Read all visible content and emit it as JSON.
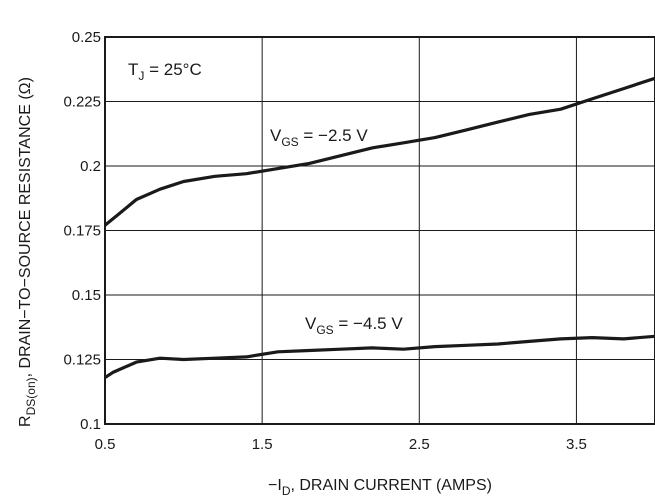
{
  "chart_data": {
    "type": "line",
    "xlabel": {
      "prefix": "−I",
      "sub": "D",
      "rest": ", DRAIN CURRENT (AMPS)"
    },
    "ylabel": {
      "main": "R",
      "sub": "DS(on)",
      "rest": ", DRAIN−TO−SOURCE RESISTANCE (Ω)"
    },
    "xlim": [
      0.5,
      4.0
    ],
    "ylim": [
      0.1,
      0.25
    ],
    "xticks": [
      "0.5",
      "1.5",
      "2.5",
      "3.5"
    ],
    "yticks": [
      "0.1",
      "0.125",
      "0.15",
      "0.175",
      "0.2",
      "0.225",
      "0.25"
    ],
    "grid": true,
    "annotation": {
      "main": "T",
      "sub": "J",
      "rest": " = 25°C"
    },
    "series": [
      {
        "label": {
          "main": "V",
          "sub": "GS",
          "rest": " = −2.5 V"
        },
        "x": [
          0.5,
          0.58,
          0.7,
          0.85,
          1.0,
          1.2,
          1.4,
          1.6,
          1.8,
          2.0,
          2.2,
          2.4,
          2.6,
          2.8,
          3.0,
          3.2,
          3.4,
          3.6,
          3.8,
          4.0
        ],
        "y": [
          0.177,
          0.181,
          0.187,
          0.191,
          0.194,
          0.196,
          0.197,
          0.199,
          0.201,
          0.204,
          0.207,
          0.209,
          0.211,
          0.214,
          0.217,
          0.22,
          0.222,
          0.226,
          0.23,
          0.234
        ]
      },
      {
        "label": {
          "main": "V",
          "sub": "GS",
          "rest": " = −4.5 V"
        },
        "x": [
          0.5,
          0.55,
          0.7,
          0.85,
          1.0,
          1.2,
          1.4,
          1.6,
          1.8,
          2.0,
          2.2,
          2.4,
          2.6,
          2.8,
          3.0,
          3.2,
          3.4,
          3.6,
          3.8,
          4.0
        ],
        "y": [
          0.118,
          0.12,
          0.124,
          0.1255,
          0.125,
          0.1255,
          0.126,
          0.128,
          0.1285,
          0.129,
          0.1295,
          0.129,
          0.13,
          0.1305,
          0.131,
          0.132,
          0.133,
          0.1335,
          0.133,
          0.134
        ]
      }
    ]
  }
}
